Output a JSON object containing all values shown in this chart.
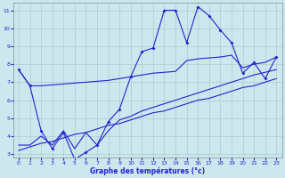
{
  "xlabel": "Graphe des températures (°c)",
  "xlim": [
    -0.5,
    23.5
  ],
  "ylim": [
    2.8,
    11.4
  ],
  "yticks": [
    3,
    4,
    5,
    6,
    7,
    8,
    9,
    10,
    11
  ],
  "xticks": [
    0,
    1,
    2,
    3,
    4,
    5,
    6,
    7,
    8,
    9,
    10,
    11,
    12,
    13,
    14,
    15,
    16,
    17,
    18,
    19,
    20,
    21,
    22,
    23
  ],
  "background_color": "#cce8ee",
  "grid_color": "#aacccc",
  "line_color": "#2222cc",
  "line1_x": [
    0,
    1,
    2,
    3,
    4,
    5,
    6,
    7,
    8,
    9,
    10,
    11,
    12,
    13,
    14,
    15,
    16,
    17,
    18,
    19,
    20,
    21,
    22,
    23
  ],
  "line1_y": [
    7.7,
    6.8,
    6.8,
    6.85,
    6.9,
    6.95,
    7.0,
    7.05,
    7.1,
    7.2,
    7.3,
    7.4,
    7.5,
    7.55,
    7.6,
    8.2,
    8.3,
    8.35,
    8.4,
    8.5,
    7.8,
    8.0,
    8.1,
    8.4
  ],
  "line2_x": [
    0,
    1,
    2,
    3,
    4,
    5,
    6,
    7,
    8,
    9,
    10,
    11,
    12,
    13,
    14,
    15,
    16,
    17,
    18,
    19,
    20,
    21,
    22,
    23
  ],
  "line2_y": [
    7.7,
    6.8,
    4.3,
    3.3,
    4.2,
    2.7,
    3.1,
    3.5,
    4.8,
    5.5,
    7.3,
    8.7,
    8.9,
    11.0,
    11.0,
    9.2,
    11.2,
    10.7,
    9.9,
    9.2,
    7.5,
    8.1,
    7.2,
    8.4
  ],
  "line3_x": [
    0,
    1,
    2,
    3,
    4,
    5,
    6,
    7,
    8,
    9,
    10,
    11,
    12,
    13,
    14,
    15,
    16,
    17,
    18,
    19,
    20,
    21,
    22,
    23
  ],
  "line3_y": [
    3.5,
    3.5,
    4.0,
    3.5,
    4.3,
    3.3,
    4.2,
    3.5,
    4.3,
    4.9,
    5.1,
    5.4,
    5.6,
    5.8,
    6.0,
    6.2,
    6.4,
    6.6,
    6.8,
    7.0,
    7.2,
    7.4,
    7.55,
    7.7
  ],
  "line4_x": [
    0,
    1,
    2,
    3,
    4,
    5,
    6,
    7,
    8,
    9,
    10,
    11,
    12,
    13,
    14,
    15,
    16,
    17,
    18,
    19,
    20,
    21,
    22,
    23
  ],
  "line4_y": [
    3.2,
    3.4,
    3.6,
    3.7,
    3.9,
    4.1,
    4.2,
    4.4,
    4.6,
    4.7,
    4.9,
    5.1,
    5.3,
    5.4,
    5.6,
    5.8,
    6.0,
    6.1,
    6.3,
    6.5,
    6.7,
    6.8,
    7.0,
    7.2
  ]
}
